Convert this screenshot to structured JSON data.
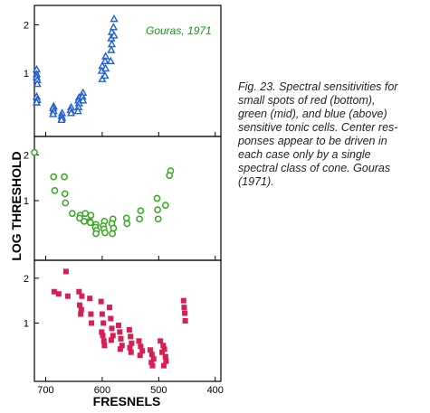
{
  "caption": "Fig. 23. Spectral sensitivities for\nsmall spots of red (bottom),\ngreen (mid), and blue (above)\nsensitive tonic cells. Center res-\nponses appear to be driven in\neach case only by a single\nspectral class of cone. Gouras\n(1971).",
  "chart_data": {
    "type": "scatter",
    "xlabel": "FRESNELS",
    "ylabel": "LOG THRESHOLD",
    "xlim": [
      720,
      390
    ],
    "x_reversed": true,
    "xticks": [
      700,
      600,
      500,
      400
    ],
    "xtick_labels": [
      "700",
      "600",
      "500",
      "400"
    ],
    "annotation": "Gouras, 1971",
    "panels": [
      {
        "name": "top",
        "marker": "triangle",
        "color": "#1f5fd6",
        "ylim": [
          -0.3,
          2.4
        ],
        "yticks": [
          1,
          2
        ],
        "ytick_labels": [
          "1",
          "2"
        ],
        "x": [
          716,
          716,
          716,
          715,
          715,
          716,
          715,
          716,
          686,
          687,
          686,
          687,
          671,
          672,
          671,
          672,
          655,
          656,
          655,
          641,
          642,
          641,
          642,
          643,
          634,
          635,
          634,
          600,
          601,
          600,
          594,
          595,
          594,
          595,
          583,
          584,
          583,
          584,
          585,
          579,
          580,
          579
        ],
        "y": [
          1.08,
          0.98,
          0.92,
          0.86,
          0.78,
          0.52,
          0.45,
          0.4,
          0.32,
          0.28,
          0.22,
          0.16,
          0.18,
          0.12,
          0.08,
          0.04,
          0.3,
          0.24,
          0.18,
          0.5,
          0.44,
          0.38,
          0.3,
          0.22,
          0.6,
          0.52,
          0.44,
          1.15,
          1.05,
          0.88,
          1.35,
          1.25,
          1.1,
          0.95,
          1.85,
          1.72,
          1.6,
          1.48,
          1.25,
          2.12,
          1.95,
          1.78
        ]
      },
      {
        "name": "mid",
        "marker": "circle",
        "color": "#33a81f",
        "ylim": [
          -0.3,
          2.4
        ],
        "yticks": [
          1,
          2
        ],
        "ytick_labels": [
          "1",
          "2"
        ],
        "x": [
          720,
          686,
          684,
          667,
          666,
          665,
          653,
          639,
          640,
          630,
          632,
          620,
          622,
          621,
          611,
          612,
          610,
          611,
          596,
          598,
          597,
          595,
          581,
          583,
          580,
          582,
          556,
          557,
          532,
          534,
          503,
          502,
          501,
          488,
          479,
          481
        ],
        "y": [
          2.05,
          1.52,
          1.22,
          1.52,
          1.15,
          0.95,
          0.72,
          0.68,
          0.62,
          0.72,
          0.55,
          0.68,
          0.55,
          0.52,
          0.48,
          0.42,
          0.35,
          0.28,
          0.55,
          0.45,
          0.38,
          0.3,
          0.6,
          0.5,
          0.4,
          0.28,
          0.5,
          0.62,
          0.78,
          0.6,
          1.05,
          0.8,
          0.6,
          0.9,
          1.65,
          1.55
        ]
      },
      {
        "name": "bottom",
        "marker": "square",
        "color": "#d81f52",
        "ylim": [
          -0.3,
          2.4
        ],
        "yticks": [
          1,
          2
        ],
        "ytick_labels": [
          "1",
          "2"
        ],
        "x": [
          685,
          677,
          664,
          661,
          641,
          636,
          640,
          637,
          638,
          622,
          620,
          619,
          602,
          600,
          598,
          601,
          599,
          597,
          596,
          587,
          585,
          583,
          581,
          584,
          571,
          569,
          567,
          565,
          568,
          552,
          550,
          548,
          551,
          549,
          535,
          532,
          529,
          533,
          515,
          512,
          509,
          513,
          511,
          497,
          492,
          490,
          494,
          488,
          487,
          491,
          456,
          455,
          454,
          453
        ],
        "y": [
          1.7,
          1.65,
          2.15,
          1.6,
          1.7,
          1.6,
          1.4,
          1.3,
          1.2,
          1.55,
          1.2,
          1.0,
          1.48,
          1.2,
          1.0,
          0.8,
          0.72,
          0.6,
          0.5,
          1.35,
          1.1,
          0.88,
          0.72,
          0.62,
          0.95,
          0.8,
          0.65,
          0.5,
          0.42,
          0.85,
          0.7,
          0.55,
          0.45,
          0.35,
          0.6,
          0.48,
          0.38,
          0.28,
          0.4,
          0.3,
          0.2,
          0.12,
          0.05,
          0.6,
          0.5,
          0.42,
          0.35,
          0.25,
          0.15,
          0.05,
          1.5,
          1.35,
          1.22,
          1.05
        ]
      }
    ]
  }
}
